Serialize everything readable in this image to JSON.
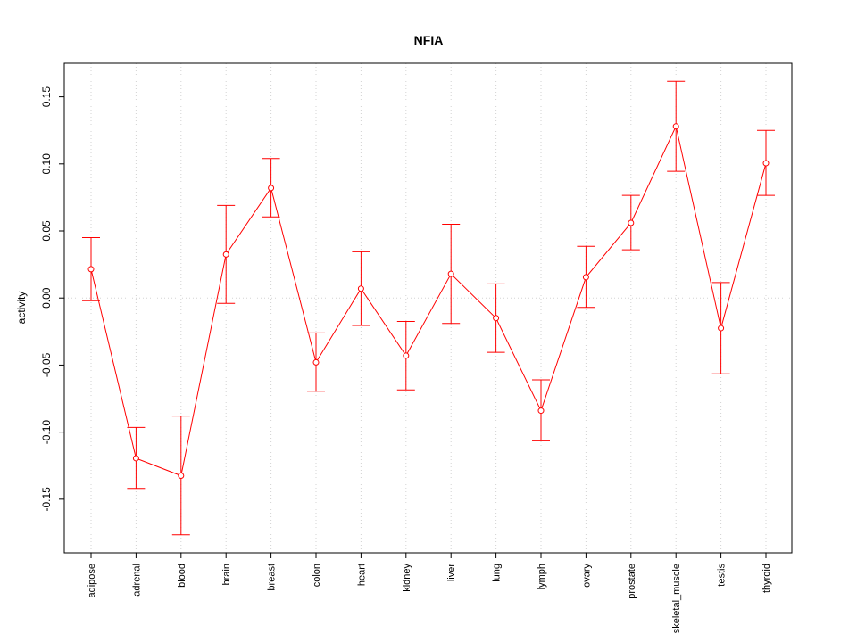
{
  "chart_data": {
    "type": "line",
    "title": "NFIA",
    "xlabel": "",
    "ylabel": "activity",
    "categories": [
      "adipose",
      "adrenal",
      "blood",
      "brain",
      "breast",
      "colon",
      "heart",
      "kidney",
      "liver",
      "lung",
      "lymph",
      "ovary",
      "prostate",
      "skeletal_muscle",
      "testis",
      "thyroid"
    ],
    "series": [
      {
        "values": [
          0.0215,
          -0.1195,
          -0.1325,
          0.0325,
          0.082,
          -0.048,
          0.007,
          -0.043,
          0.018,
          -0.015,
          -0.084,
          0.0155,
          0.056,
          0.128,
          -0.0225,
          0.1005
        ],
        "lower": [
          -0.002,
          -0.142,
          -0.1765,
          -0.004,
          0.0605,
          -0.0695,
          -0.0205,
          -0.0685,
          -0.019,
          -0.0405,
          -0.1065,
          -0.007,
          0.036,
          0.0945,
          -0.0565,
          0.0765
        ],
        "upper": [
          0.045,
          -0.0965,
          -0.088,
          0.069,
          0.104,
          -0.026,
          0.0345,
          -0.0175,
          0.055,
          0.0105,
          -0.061,
          0.0385,
          0.0765,
          0.1615,
          0.0115,
          0.125
        ],
        "color": "#ff0000"
      }
    ],
    "ylim": [
      -0.19,
      0.175
    ],
    "yticks": [
      "-0.15",
      "-0.10",
      "-0.05",
      "0.00",
      "0.05",
      "0.10",
      "0.15"
    ],
    "grid": true
  }
}
